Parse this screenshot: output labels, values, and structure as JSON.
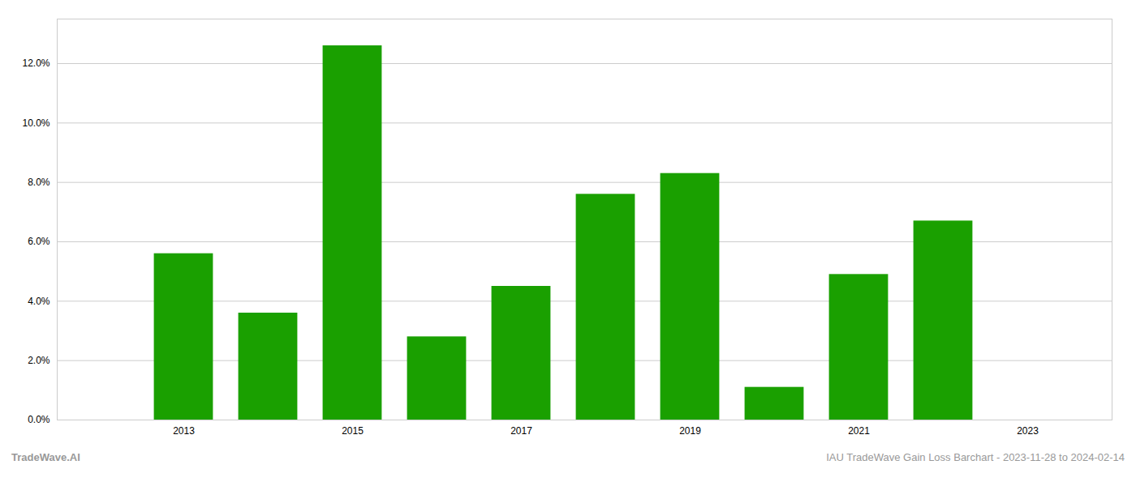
{
  "chart_data": {
    "type": "bar",
    "x": [
      2013,
      2014,
      2015,
      2016,
      2017,
      2018,
      2019,
      2020,
      2021,
      2022
    ],
    "values": [
      0.056,
      0.036,
      0.126,
      0.028,
      0.045,
      0.076,
      0.083,
      0.011,
      0.049,
      0.067
    ],
    "color": "#1aa000",
    "xlim": [
      2011.5,
      2024.0
    ],
    "xticks": [
      2013,
      2015,
      2017,
      2019,
      2021,
      2023
    ],
    "ylim": [
      0,
      0.135
    ],
    "yticks": [
      {
        "value": 0.0,
        "label": "0.0%"
      },
      {
        "value": 0.02,
        "label": "2.0%"
      },
      {
        "value": 0.04,
        "label": "4.0%"
      },
      {
        "value": 0.06,
        "label": "6.0%"
      },
      {
        "value": 0.08,
        "label": "8.0%"
      },
      {
        "value": 0.1,
        "label": "10.0%"
      },
      {
        "value": 0.12,
        "label": "12.0%"
      }
    ],
    "grid": true,
    "annotations": [
      "TradeWave.AI",
      "IAU TradeWave Gain Loss Barchart - 2023-11-28 to 2024-02-14"
    ]
  }
}
